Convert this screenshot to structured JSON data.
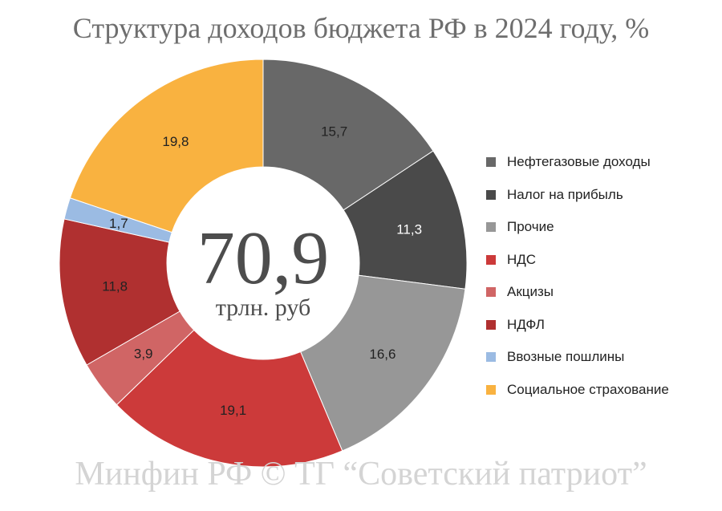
{
  "title": "Структура доходов бюджета РФ в 2024 году, %",
  "watermark": "Минфин РФ © ТГ “Советский патриот”",
  "center": {
    "value": "70,9",
    "unit": "трлн. руб"
  },
  "chart_data": {
    "type": "pie",
    "title": "Структура доходов бюджета РФ в 2024 году, %",
    "categories": [
      "Нефтегазовые доходы",
      "Налог на прибыль",
      "Прочие",
      "НДС",
      "Акцизы",
      "НДФЛ",
      "Ввозные пошлины",
      "Социальное страхование"
    ],
    "values": [
      15.7,
      11.3,
      16.6,
      19.1,
      3.9,
      11.8,
      1.7,
      19.8
    ],
    "labels": [
      "15,7",
      "11,3",
      "16,6",
      "19,1",
      "3,9",
      "11,8",
      "1,7",
      "19,8"
    ],
    "colors": [
      "#686868",
      "#4a4a4a",
      "#979797",
      "#cc3a3a",
      "#d06565",
      "#b03030",
      "#9bbbe3",
      "#f9b240"
    ],
    "label_colors": [
      "#222222",
      "#ffffff",
      "#222222",
      "#222222",
      "#222222",
      "#222222",
      "#222222",
      "#222222"
    ],
    "legend_position": "right",
    "hole": true
  }
}
